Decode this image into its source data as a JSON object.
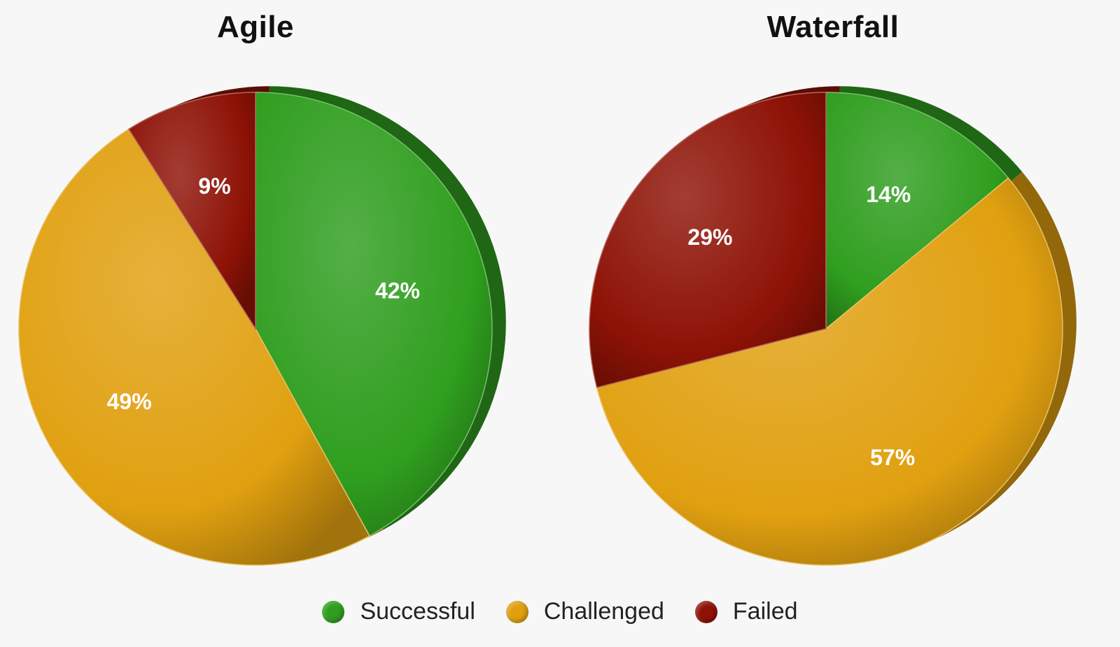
{
  "colors": {
    "Successful": "#2f9e1e",
    "Challenged": "#e0a010",
    "Failed": "#8e1206"
  },
  "legend": [
    {
      "label": "Successful"
    },
    {
      "label": "Challenged"
    },
    {
      "label": "Failed"
    }
  ],
  "chart_data": [
    {
      "type": "pie",
      "title": "Agile",
      "categories": [
        "Successful",
        "Challenged",
        "Failed"
      ],
      "values": [
        42,
        49,
        9
      ],
      "labels": [
        "42%",
        "49%",
        "9%"
      ]
    },
    {
      "type": "pie",
      "title": "Waterfall",
      "categories": [
        "Successful",
        "Challenged",
        "Failed"
      ],
      "values": [
        14,
        57,
        29
      ],
      "labels": [
        "14%",
        "57%",
        "29%"
      ]
    }
  ]
}
